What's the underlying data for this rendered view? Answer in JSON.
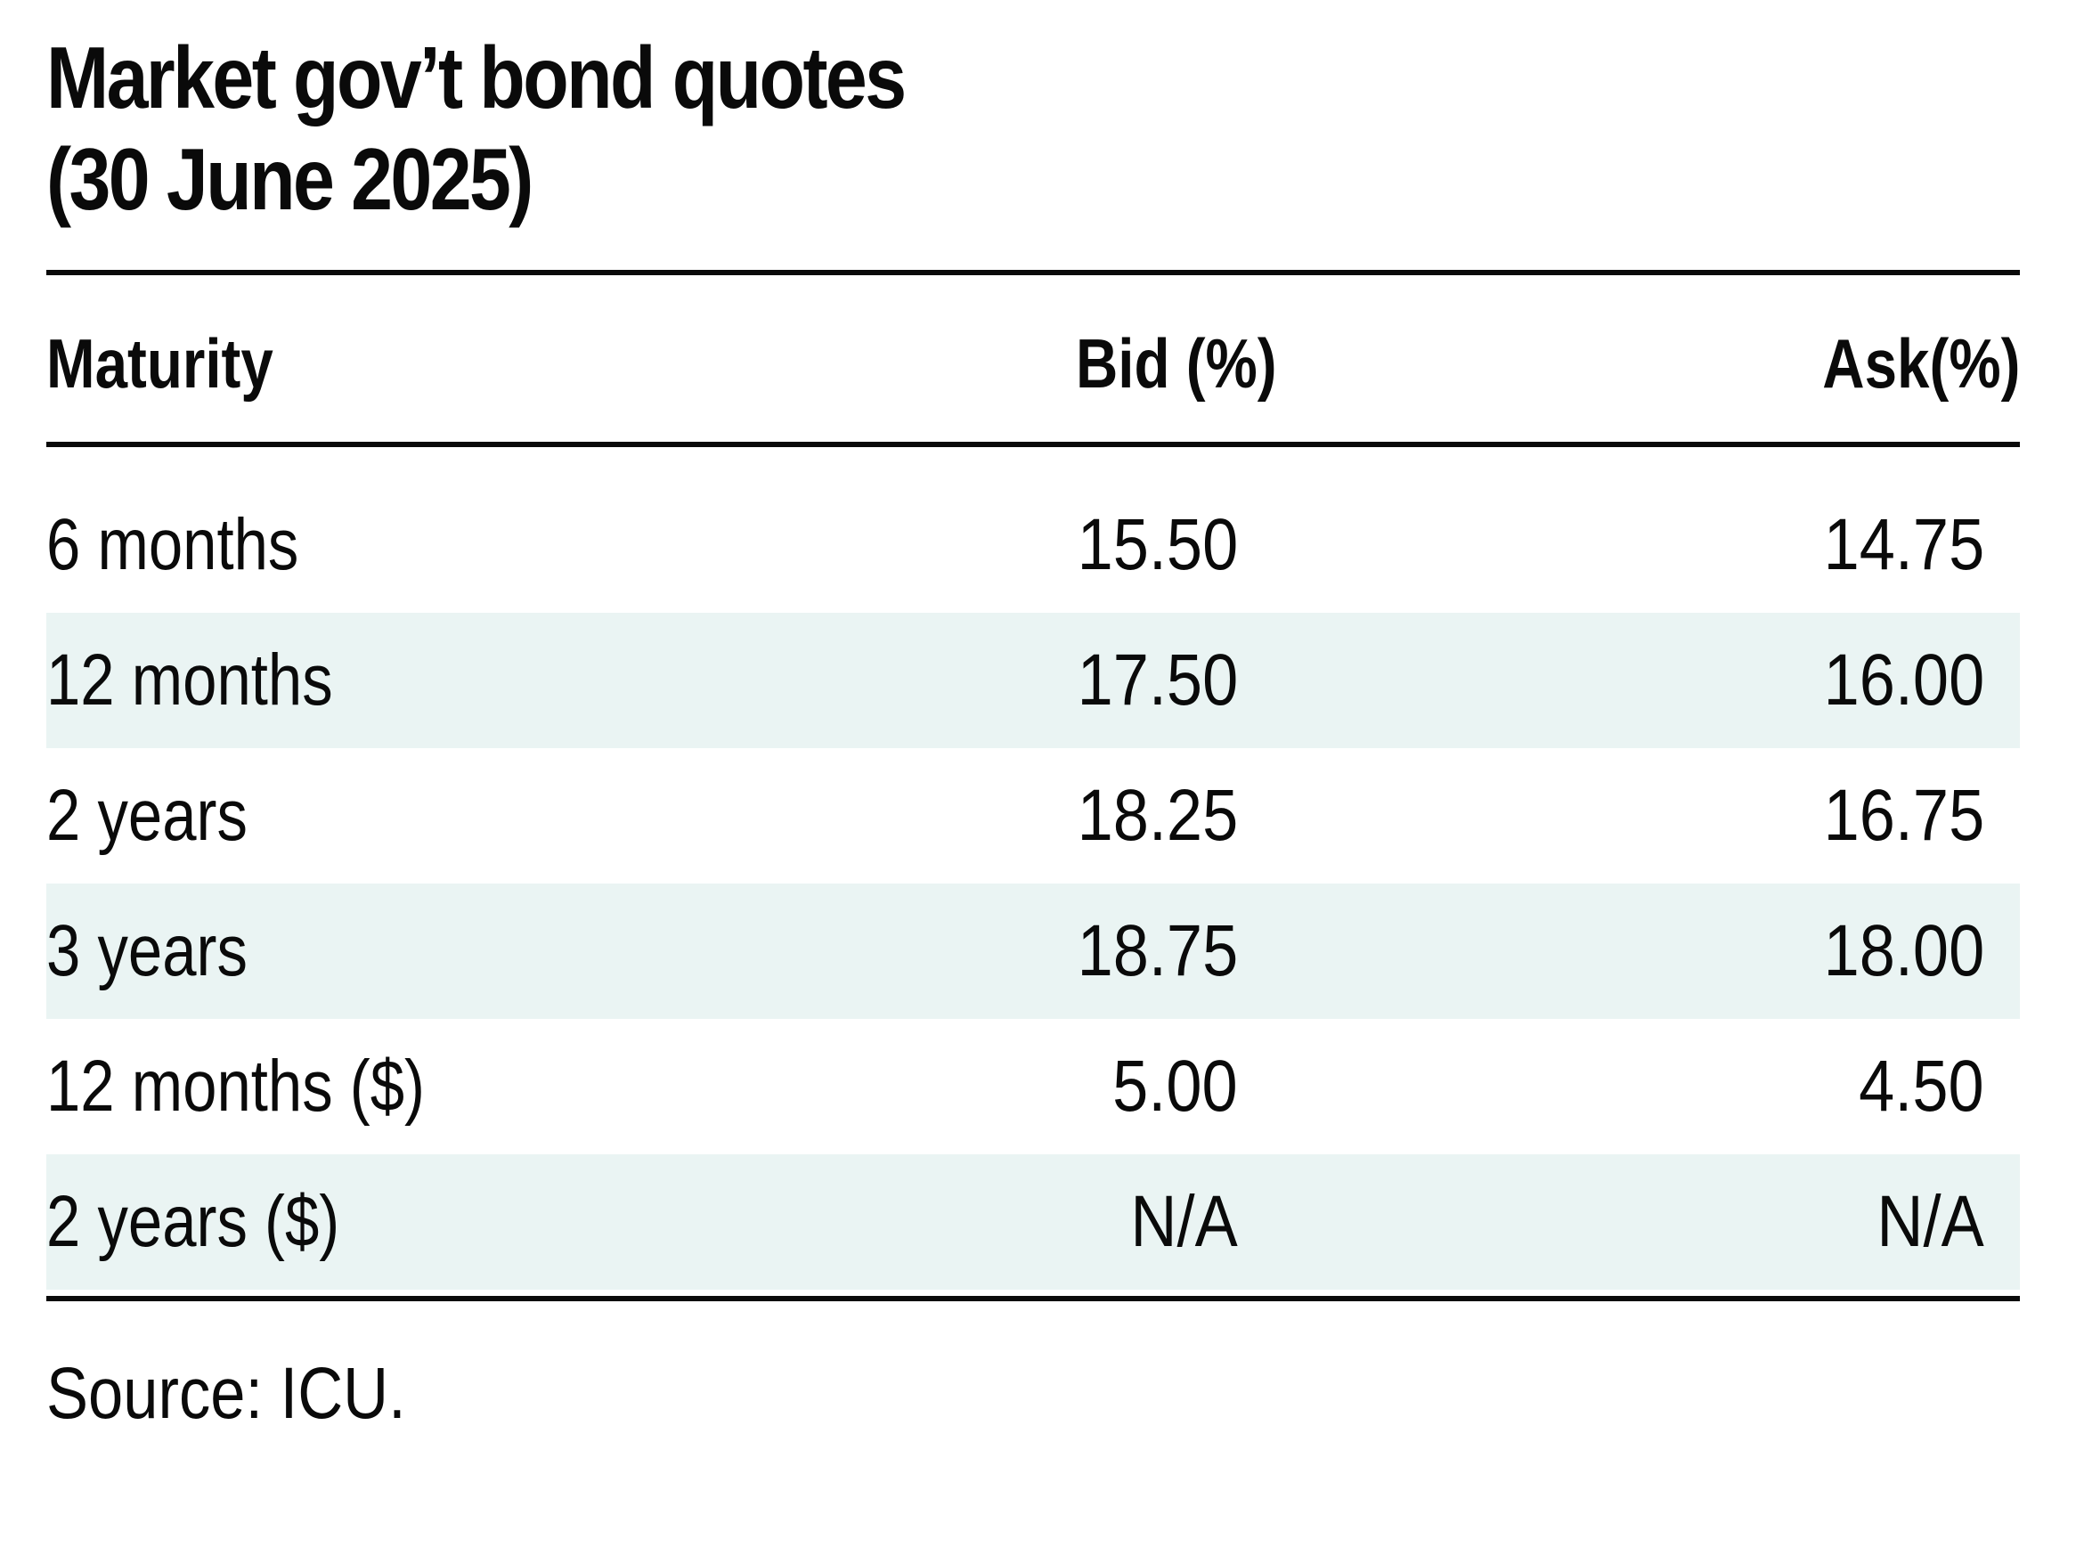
{
  "chart_data": {
    "type": "table",
    "title": "Market gov’t bond quotes",
    "subtitle": "(30 June 2025)",
    "columns": [
      "Maturity",
      "Bid (%)",
      "Ask(%)"
    ],
    "rows": [
      {
        "maturity": "6 months",
        "bid": "15.50",
        "ask": "14.75"
      },
      {
        "maturity": "12 months",
        "bid": "17.50",
        "ask": "16.00"
      },
      {
        "maturity": "2 years",
        "bid": "18.25",
        "ask": "16.75"
      },
      {
        "maturity": "3 years",
        "bid": "18.75",
        "ask": "18.00"
      },
      {
        "maturity": "12 months ($)",
        "bid": "5.00",
        "ask": "4.50"
      },
      {
        "maturity": "2 years ($)",
        "bid": "N/A",
        "ask": "N/A"
      }
    ],
    "source": "Source: ICU.",
    "row_shading_color": "#eaf4f3",
    "rule_color": "#0a0a0a"
  }
}
